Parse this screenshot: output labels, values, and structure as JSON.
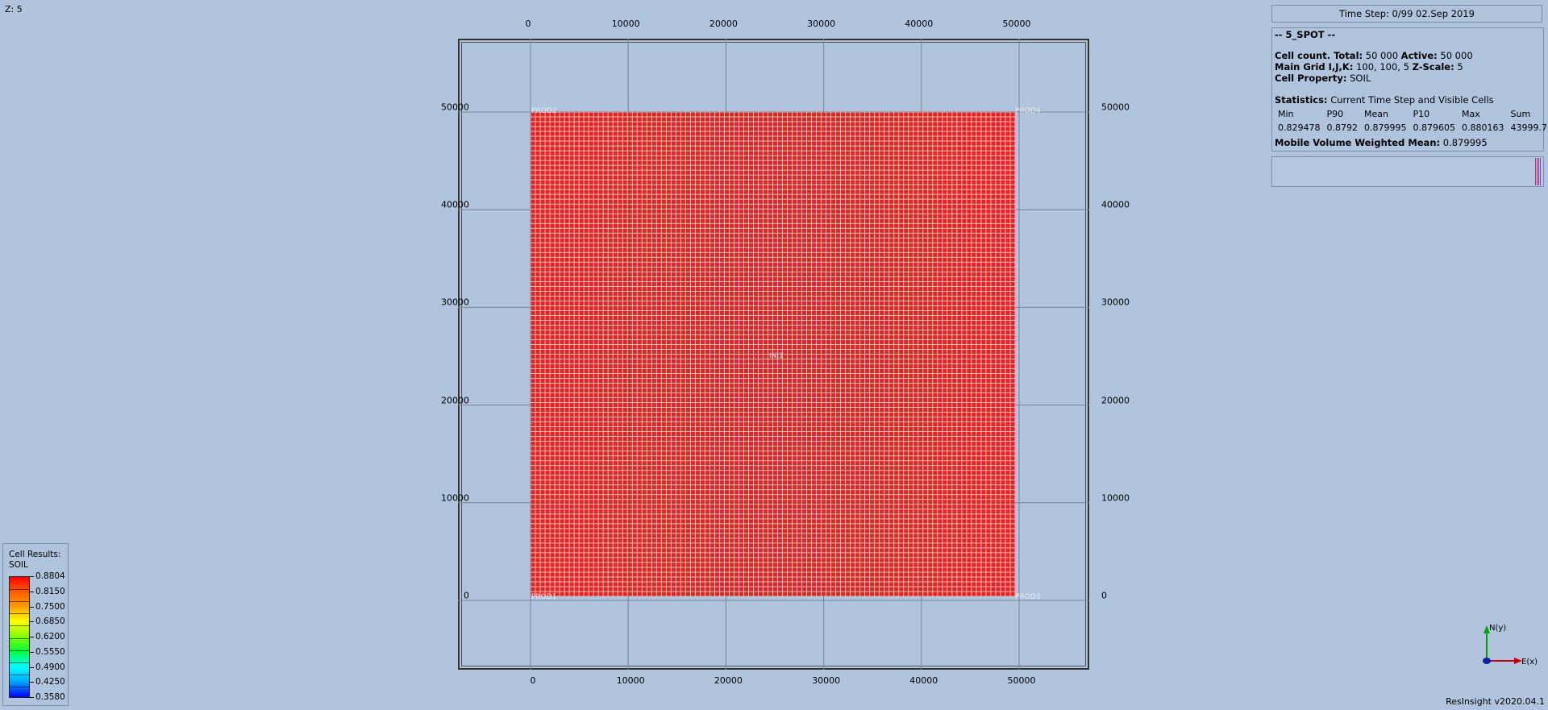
{
  "z_label": "Z: 5",
  "axis_ticks": {
    "x": [
      "0",
      "10000",
      "20000",
      "30000",
      "40000",
      "50000"
    ],
    "y": [
      "50000",
      "40000",
      "30000",
      "20000",
      "10000",
      "0"
    ]
  },
  "wells": {
    "top_left": "PROD2",
    "top_right": "PROD4",
    "center": "INJ1",
    "bottom_left": "PROD1",
    "bottom_right": "PROD3"
  },
  "timestep": "Time Step: 0/99 02.Sep 2019",
  "info": {
    "case_name": "-- 5_SPOT --",
    "cell_count_label": "Cell count. Total:",
    "cell_count_total": "50 000",
    "active_label": "Active:",
    "active_count": "50 000",
    "main_grid_label": "Main Grid I,J,K:",
    "main_grid_value": "100, 100, 5",
    "zscale_label": "Z-Scale:",
    "zscale_value": "5",
    "cell_property_label": "Cell Property:",
    "cell_property_value": "SOIL",
    "statistics_label": "Statistics:",
    "statistics_value": "Current Time Step and Visible Cells",
    "stats_headers": [
      "Min",
      "P90",
      "Mean",
      "P10",
      "Max",
      "Sum"
    ],
    "stats_values": [
      "0.829478",
      "0.8792",
      "0.879995",
      "0.879605",
      "0.880163",
      "43999.7"
    ],
    "mobile_label": "Mobile Volume Weighted Mean:",
    "mobile_value": "0.879995"
  },
  "legend": {
    "title_line1": "Cell Results:",
    "title_line2": "SOIL",
    "labels": [
      "0.8804",
      "0.8150",
      "0.7500",
      "0.6850",
      "0.6200",
      "0.5550",
      "0.4900",
      "0.4250",
      "0.3580"
    ]
  },
  "axis_widget": {
    "north": "N(y)",
    "east": "E(x)"
  },
  "version": "ResInsight v2020.04.1",
  "colors": {
    "background": "#b0c4de",
    "cell_fill": "#e02525",
    "cell_line": "#ffffff",
    "gridline": "#7a8494"
  }
}
